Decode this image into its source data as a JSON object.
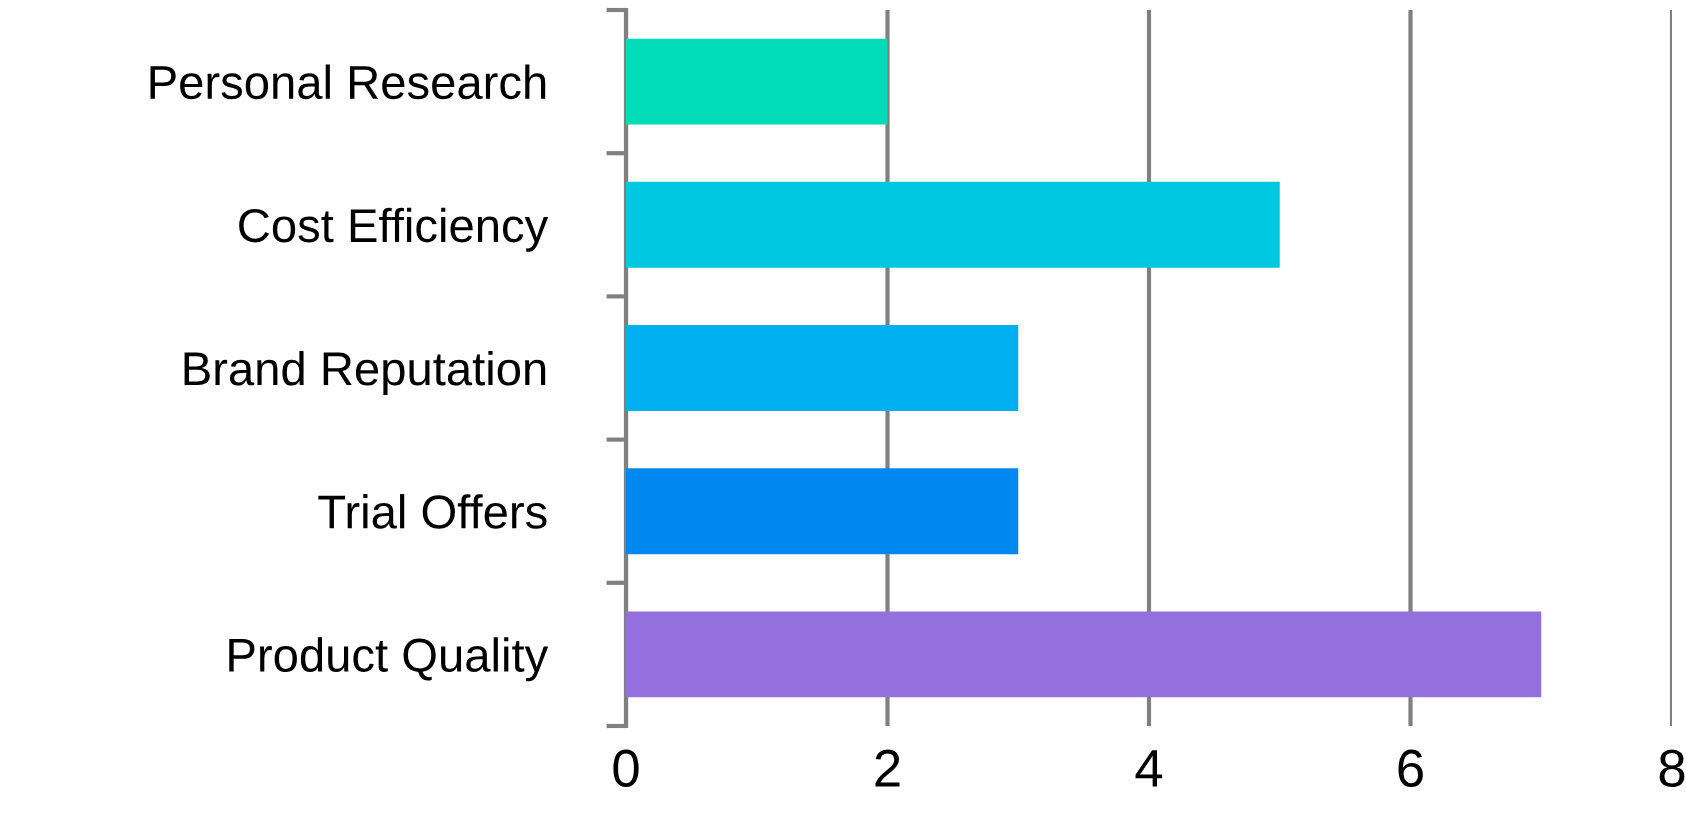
{
  "chart_data": {
    "type": "bar",
    "orientation": "horizontal",
    "categories": [
      "Personal Research",
      "Cost Efficiency",
      "Brand Reputation",
      "Trial Offers",
      "Product Quality"
    ],
    "values": [
      2,
      5,
      3,
      3,
      7
    ],
    "colors": [
      "#00dbb8",
      "#00c8e0",
      "#00b0f0",
      "#0088f0",
      "#9370db"
    ],
    "xlim": [
      0,
      8
    ],
    "xticks": [
      0,
      2,
      4,
      6,
      8
    ],
    "grid": "x",
    "legend": false
  }
}
